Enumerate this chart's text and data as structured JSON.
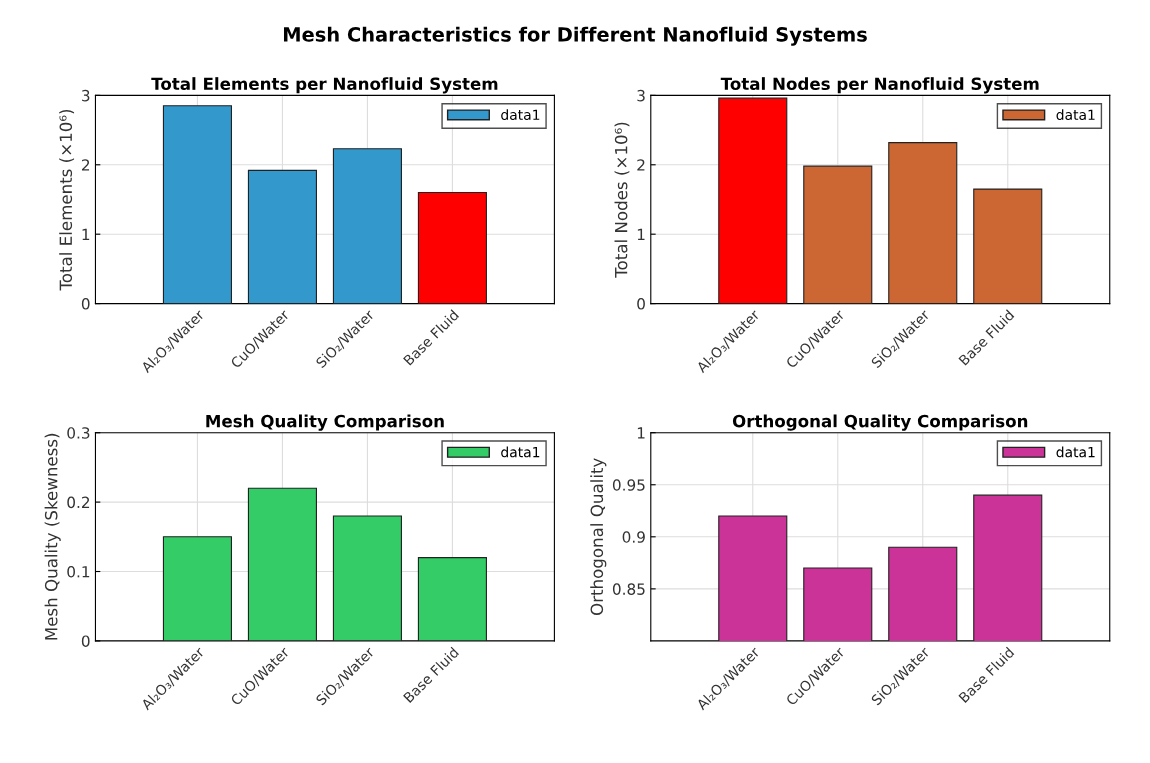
{
  "chart_data": [
    {
      "type": "other",
      "title": "Mesh Characteristics for Different Nanofluid Systems"
    },
    {
      "type": "bar",
      "title": "Total Elements per Nanofluid System",
      "ylabel": "Total Elements (×10⁶)",
      "categories": [
        "Al₂O₃/Water",
        "CuO/Water",
        "SiO₂/Water",
        "Base Fluid"
      ],
      "series": [
        {
          "name": "data1",
          "color": "#3399cc",
          "colors": [
            "#3399cc",
            "#3399cc",
            "#3399cc",
            "#ff0000"
          ],
          "values": [
            2.85,
            1.92,
            2.23,
            1.6
          ]
        }
      ],
      "ylim": [
        0,
        3
      ],
      "yticks": [
        0,
        1,
        2,
        3
      ],
      "grid": true,
      "legend": "top right"
    },
    {
      "type": "bar",
      "title": "Total Nodes per Nanofluid System",
      "ylabel": "Total Nodes (×10⁶)",
      "categories": [
        "Al₂O₃/Water",
        "CuO/Water",
        "SiO₂/Water",
        "Base Fluid"
      ],
      "series": [
        {
          "name": "data1",
          "color": "#cc6633",
          "colors": [
            "#ff0000",
            "#cc6633",
            "#cc6633",
            "#cc6633"
          ],
          "values": [
            2.96,
            1.98,
            2.32,
            1.65
          ]
        }
      ],
      "ylim": [
        0,
        3
      ],
      "yticks": [
        0,
        1,
        2,
        3
      ],
      "grid": true,
      "legend": "top right"
    },
    {
      "type": "bar",
      "title": "Mesh Quality Comparison",
      "ylabel": "Mesh Quality (Skewness)",
      "categories": [
        "Al₂O₃/Water",
        "CuO/Water",
        "SiO₂/Water",
        "Base Fluid"
      ],
      "series": [
        {
          "name": "data1",
          "color": "#33cc66",
          "values": [
            0.15,
            0.22,
            0.18,
            0.12
          ]
        }
      ],
      "ylim": [
        0,
        0.3
      ],
      "yticks": [
        0,
        0.1,
        0.2,
        0.3
      ],
      "grid": true,
      "legend": "top right"
    },
    {
      "type": "bar",
      "title": "Orthogonal Quality Comparison",
      "ylabel": "Orthogonal Quality",
      "categories": [
        "Al₂O₃/Water",
        "CuO/Water",
        "SiO₂/Water",
        "Base Fluid"
      ],
      "series": [
        {
          "name": "data1",
          "color": "#cc3399",
          "values": [
            0.92,
            0.87,
            0.89,
            0.94
          ]
        }
      ],
      "ylim": [
        0.8,
        1
      ],
      "yticks": [
        0.85,
        0.9,
        0.95,
        1
      ],
      "grid": true,
      "legend": "top right"
    }
  ]
}
